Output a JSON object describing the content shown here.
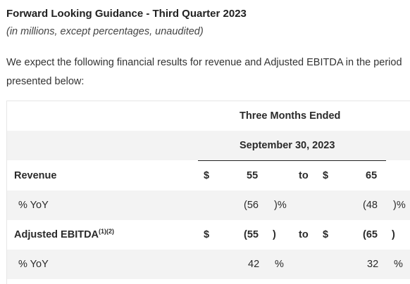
{
  "heading": "Forward Looking Guidance - Third Quarter 2023",
  "subheading": "(in millions, except percentages, unaudited)",
  "intro": "We expect the following financial results for revenue and Adjusted EBITDA in the period presented below:",
  "table": {
    "header_line1": "Three Months Ended",
    "header_line2": "September 30, 2023",
    "rows": {
      "revenue": {
        "label": "Revenue",
        "currency_low": "$",
        "low": "55",
        "to": "to",
        "currency_high": "$",
        "high": "65"
      },
      "revenue_yoy": {
        "label": "% YoY",
        "low_open": "(56",
        "low_close": ")%",
        "high_open": "(48",
        "high_close": ")%"
      },
      "ebitda": {
        "label": "Adjusted EBITDA",
        "footnote": "(1)(2)",
        "currency_low": "$",
        "low_open": "(55",
        "low_close": ")",
        "to": "to",
        "currency_high": "$",
        "high_open": "(65",
        "high_close": ")"
      },
      "ebitda_yoy": {
        "label": "% YoY",
        "low": "42",
        "low_pct": "%",
        "high": "32",
        "high_pct": "%"
      }
    }
  }
}
